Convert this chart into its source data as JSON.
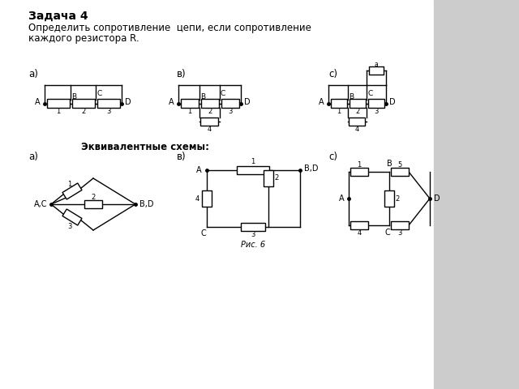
{
  "title": "Задача 4",
  "subtitle1": "Определить сопротивление  цепи, если сопротивление",
  "subtitle2": "каждого резистора R.",
  "equiv_label": "Эквивалентные схемы:",
  "fig_label": "Рис. 6",
  "bg_color": "#ffffff",
  "panel_bg": "#cccccc",
  "line_color": "#000000"
}
